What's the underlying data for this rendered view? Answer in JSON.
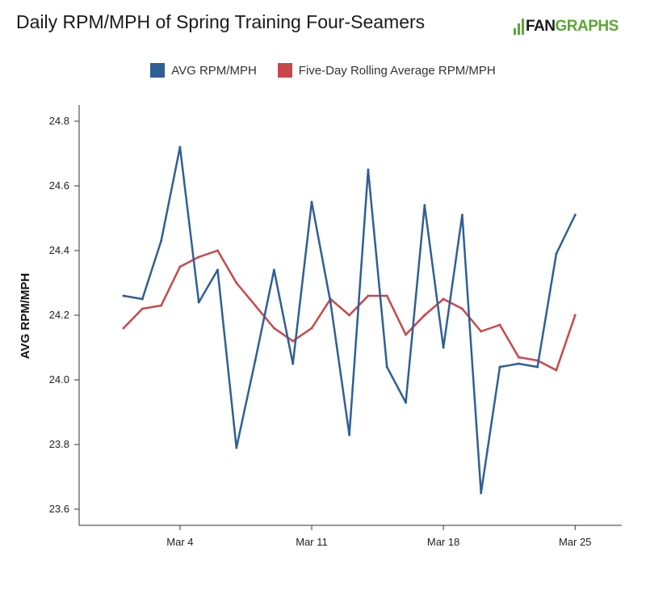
{
  "header": {
    "title": "Daily RPM/MPH of Spring Training Four-Seamers",
    "logo_fan": "FAN",
    "logo_graphs": "GRAPHS"
  },
  "legend": {
    "position": "top-center",
    "items": [
      {
        "label": "AVG RPM/MPH",
        "color": "#2f5f96"
      },
      {
        "label": "Five-Day Rolling Average RPM/MPH",
        "color": "#c9474a"
      }
    ]
  },
  "chart_data": {
    "type": "line",
    "title": "Daily RPM/MPH of Spring Training Four-Seamers",
    "xlabel": "",
    "ylabel": "AVG RPM/MPH",
    "x": [
      "Mar 1",
      "Mar 2",
      "Mar 3",
      "Mar 4",
      "Mar 5",
      "Mar 6",
      "Mar 7",
      "Mar 8",
      "Mar 9",
      "Mar 10",
      "Mar 11",
      "Mar 12",
      "Mar 13",
      "Mar 14",
      "Mar 15",
      "Mar 16",
      "Mar 17",
      "Mar 18",
      "Mar 19",
      "Mar 20",
      "Mar 21",
      "Mar 22",
      "Mar 23",
      "Mar 24",
      "Mar 25"
    ],
    "x_ticks": [
      {
        "label": "Mar 4",
        "index": 3
      },
      {
        "label": "Mar 11",
        "index": 10
      },
      {
        "label": "Mar 18",
        "index": 17
      },
      {
        "label": "Mar 25",
        "index": 24
      }
    ],
    "ylim": [
      23.55,
      24.85
    ],
    "y_ticks": [
      "23.6",
      "23.8",
      "24.0",
      "24.2",
      "24.4",
      "24.6",
      "24.8"
    ],
    "grid": false,
    "series": [
      {
        "name": "AVG RPM/MPH",
        "color": "#2f5f96",
        "values": [
          24.26,
          24.25,
          24.43,
          24.72,
          24.24,
          24.34,
          23.79,
          24.06,
          24.34,
          24.05,
          24.55,
          24.24,
          23.83,
          24.65,
          24.04,
          23.93,
          24.54,
          24.1,
          24.51,
          23.65,
          24.04,
          24.05,
          24.04,
          24.39,
          24.51
        ]
      },
      {
        "name": "Five-Day Rolling Average RPM/MPH",
        "color": "#c9474a",
        "values": [
          24.16,
          24.22,
          24.23,
          24.35,
          24.38,
          24.4,
          24.3,
          24.23,
          24.16,
          24.12,
          24.16,
          24.25,
          24.2,
          24.26,
          24.26,
          24.14,
          24.2,
          24.25,
          24.22,
          24.15,
          24.17,
          24.07,
          24.06,
          24.03,
          24.2
        ]
      }
    ]
  }
}
